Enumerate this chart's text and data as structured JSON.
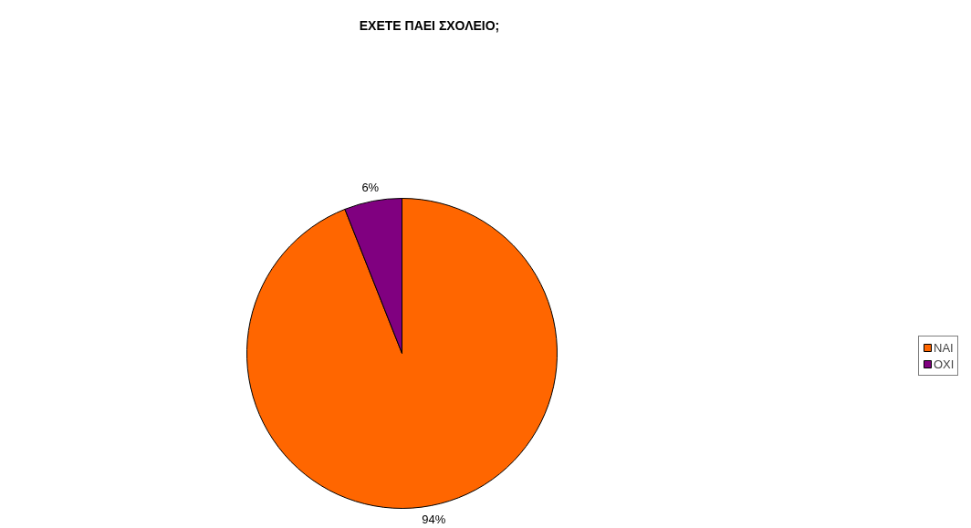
{
  "chart_data": {
    "type": "pie",
    "title": "ΕΧΕΤΕ ΠΑΕΙ ΣΧΟΛΕΙΟ;",
    "categories": [
      "ΝΑΙ",
      "ΟΧΙ"
    ],
    "values": [
      94,
      6
    ],
    "colors": [
      "#ff6600",
      "#800080"
    ],
    "value_labels": [
      "94%",
      "6%"
    ],
    "legend": "right"
  }
}
